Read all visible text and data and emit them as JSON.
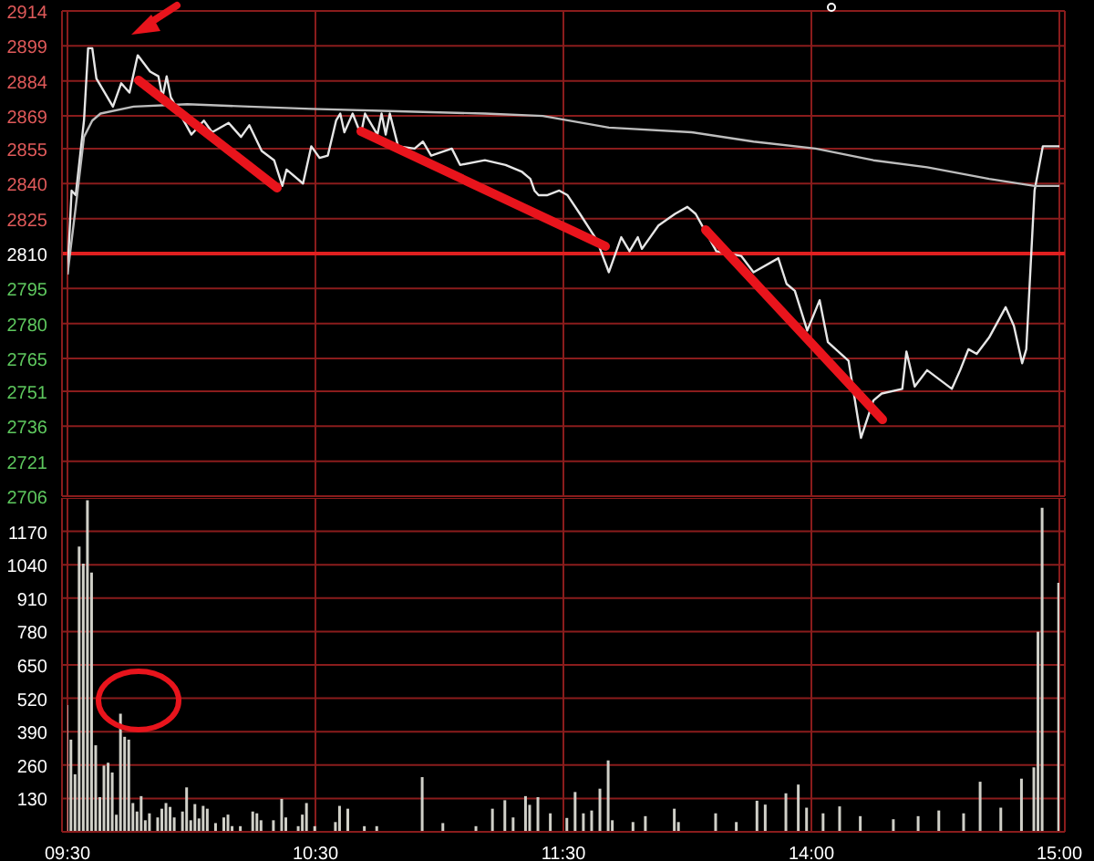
{
  "chart_data": [
    {
      "type": "line",
      "categories": [
        null,
        null,
        null,
        null,
        null,
        null,
        null,
        null,
        null,
        null,
        null,
        null,
        null,
        null,
        null,
        null,
        null,
        null,
        null,
        null,
        null,
        null,
        null,
        null,
        null,
        null,
        null,
        null,
        null,
        null,
        null,
        null,
        null,
        null,
        null,
        null,
        null,
        null,
        null,
        null,
        null,
        null,
        null,
        null,
        null,
        null,
        null,
        null,
        null,
        null,
        null,
        null,
        null,
        null,
        null,
        null,
        null,
        null,
        null,
        null,
        null,
        null,
        null,
        null,
        null,
        null,
        null,
        null,
        null,
        null,
        null,
        null,
        null,
        null,
        null,
        null,
        null,
        null,
        null,
        null,
        null,
        null,
        null,
        null,
        null,
        null,
        null,
        null,
        null,
        null,
        null,
        null,
        null,
        null,
        null,
        null,
        null,
        null,
        null,
        null,
        null,
        null,
        null,
        null,
        null,
        null,
        null,
        null,
        null,
        null,
        null,
        null,
        null,
        null,
        null,
        null,
        null,
        null,
        null,
        null,
        null,
        null,
        null,
        null,
        null,
        null,
        null,
        null,
        null,
        null,
        null,
        null,
        null,
        null,
        null,
        null,
        null,
        null,
        null,
        null,
        null,
        null,
        null,
        null,
        null,
        null,
        null,
        null,
        null,
        null,
        null,
        null,
        null,
        null,
        null,
        null,
        null,
        null,
        null,
        null,
        null,
        null,
        null,
        null,
        null,
        null,
        null,
        null,
        null,
        null,
        null,
        null,
        null,
        null,
        null,
        null,
        null,
        null,
        null,
        null,
        null,
        null,
        null,
        null,
        null,
        null,
        null,
        null,
        null,
        null,
        null,
        null,
        null,
        null,
        null,
        null,
        null,
        null,
        null,
        null,
        null,
        null,
        null,
        null,
        null,
        null,
        null,
        null,
        null,
        null,
        null,
        null,
        null,
        null,
        null,
        null,
        null,
        null,
        null,
        null,
        null,
        null,
        null,
        null,
        null,
        null,
        null,
        null,
        null,
        null,
        null,
        null,
        null,
        null,
        null,
        null,
        null,
        null,
        null,
        null,
        null
      ],
      "ylim": [
        2706,
        2914
      ],
      "yticks": [
        2706,
        2721,
        2736,
        2751,
        2765,
        2780,
        2795,
        2810,
        2825,
        2840,
        2855,
        2869,
        2884,
        2899,
        2914
      ],
      "tick_labels": "y",
      "grid": true,
      "ref_lines": [
        {
          "axis": "y",
          "value": 2810,
          "color": "#e02020"
        }
      ],
      "series": [
        {
          "color": "#e6e6e6",
          "values": [
            2801,
            2837,
            2835,
            null,
            2867,
            2898,
            2898,
            2885,
            null,
            null,
            null,
            2873,
            null,
            2883,
            null,
            2879,
            null,
            2895,
            null,
            null,
            2888,
            null,
            2886,
            2877,
            2886,
            2877,
            null,
            null,
            null,
            null,
            2861,
            null,
            null,
            2867,
            null,
            2862,
            null,
            null,
            null,
            2866,
            null,
            null,
            2860,
            null,
            2865,
            null,
            null,
            2854,
            null,
            null,
            2850,
            null,
            2839,
            2846,
            null,
            null,
            null,
            2840,
            null,
            2856,
            null,
            2851,
            null,
            2852,
            null,
            2867,
            2870,
            2862,
            null,
            2870,
            null,
            2861,
            2870,
            null,
            null,
            2861,
            2870,
            2861,
            2870,
            null,
            2856,
            null,
            null,
            null,
            2855,
            null,
            2858,
            null,
            2852,
            null,
            null,
            null,
            null,
            2855,
            null,
            2848,
            null,
            null,
            null,
            null,
            null,
            2850,
            null,
            null,
            null,
            null,
            2848,
            null,
            null,
            null,
            2845,
            null,
            2842,
            2837,
            2835,
            null,
            2835,
            null,
            null,
            2837,
            null,
            2835,
            null,
            null,
            2827,
            null,
            null,
            null,
            2816,
            null,
            null,
            2802,
            null,
            2812,
            2817,
            null,
            2811,
            null,
            2817,
            2812,
            null,
            null,
            null,
            2822,
            null,
            null,
            null,
            2827,
            null,
            null,
            2830,
            null,
            2827,
            null,
            null,
            null,
            null,
            2811,
            null,
            null,
            null,
            null,
            null,
            2809,
            null,
            null,
            2802,
            null,
            null,
            null,
            null,
            null,
            2808,
            null,
            2797,
            null,
            2794,
            null,
            null,
            2777,
            null,
            null,
            2790,
            null,
            2772,
            null,
            null,
            null,
            null,
            2764,
            null,
            null,
            2731,
            null,
            null,
            2747,
            null,
            2750,
            null,
            null,
            null,
            null,
            2752,
            2768,
            null,
            2753,
            null,
            null,
            2760,
            null,
            null,
            2756,
            null,
            null,
            2752,
            null,
            2760,
            null,
            2769,
            null,
            2767,
            null,
            null,
            2774,
            null,
            null,
            null,
            2787,
            null,
            2779,
            null,
            2763,
            2769,
            null,
            2837,
            null,
            2856,
            null,
            null,
            null,
            2856
          ]
        },
        {
          "color": "#bdbdbd",
          "values": [
            2801,
            null,
            2830,
            null,
            2860,
            null,
            2867,
            null,
            2870,
            null,
            null,
            null,
            null,
            null,
            null,
            null,
            2873,
            null,
            null,
            null,
            null,
            null,
            null,
            null,
            null,
            null,
            null,
            null,
            null,
            2874,
            null,
            null,
            null,
            null,
            null,
            null,
            null,
            null,
            null,
            null,
            null,
            null,
            null,
            null,
            2873,
            null,
            null,
            null,
            null,
            null,
            null,
            null,
            null,
            null,
            null,
            null,
            null,
            null,
            null,
            2872,
            null,
            null,
            null,
            null,
            null,
            null,
            null,
            null,
            null,
            null,
            null,
            null,
            null,
            null,
            null,
            null,
            null,
            null,
            null,
            null,
            2871,
            null,
            null,
            null,
            null,
            null,
            null,
            null,
            null,
            null,
            null,
            null,
            null,
            null,
            null,
            null,
            null,
            null,
            null,
            null,
            null,
            2870,
            null,
            null,
            null,
            null,
            null,
            null,
            null,
            null,
            null,
            null,
            null,
            null,
            null,
            2869,
            null,
            null,
            null,
            null,
            null,
            null,
            null,
            null,
            null,
            null,
            null,
            null,
            null,
            null,
            null,
            2864,
            null,
            null,
            null,
            null,
            null,
            null,
            null,
            null,
            null,
            null,
            null,
            null,
            null,
            null,
            null,
            null,
            null,
            null,
            null,
            2862,
            null,
            null,
            null,
            null,
            null,
            null,
            null,
            null,
            null,
            null,
            null,
            null,
            null,
            null,
            2858,
            null,
            null,
            null,
            null,
            null,
            null,
            null,
            null,
            null,
            null,
            null,
            null,
            null,
            null,
            2855,
            null,
            null,
            null,
            null,
            null,
            null,
            null,
            null,
            null,
            null,
            null,
            null,
            null,
            2850,
            null,
            null,
            null,
            null,
            null,
            null,
            null,
            null,
            null,
            null,
            null,
            null,
            2847,
            null,
            null,
            null,
            null,
            null,
            null,
            null,
            null,
            null,
            null,
            null,
            null,
            null,
            null,
            2842,
            null,
            null,
            null,
            null,
            null,
            null,
            null,
            null,
            null,
            null,
            2839,
            null,
            null,
            null,
            null,
            null,
            2839
          ]
        }
      ]
    },
    {
      "type": "bar",
      "categories": [
        "09:30",
        null,
        null,
        null,
        null,
        null,
        null,
        null,
        null,
        null,
        null,
        null,
        null,
        null,
        null,
        null,
        null,
        null,
        null,
        null,
        null,
        null,
        null,
        null,
        null,
        null,
        null,
        null,
        null,
        null,
        null,
        null,
        null,
        null,
        null,
        null,
        null,
        null,
        null,
        null,
        null,
        null,
        null,
        null,
        null,
        null,
        null,
        null,
        null,
        null,
        null,
        null,
        null,
        null,
        null,
        null,
        null,
        null,
        null,
        null,
        "10:30",
        null,
        null,
        null,
        null,
        null,
        null,
        null,
        null,
        null,
        null,
        null,
        null,
        null,
        null,
        null,
        null,
        null,
        null,
        null,
        null,
        null,
        null,
        null,
        null,
        null,
        null,
        null,
        null,
        null,
        null,
        null,
        null,
        null,
        null,
        null,
        null,
        null,
        null,
        null,
        null,
        null,
        null,
        null,
        null,
        null,
        null,
        null,
        null,
        null,
        null,
        null,
        null,
        null,
        null,
        null,
        null,
        null,
        null,
        null,
        "11:30",
        null,
        null,
        null,
        null,
        null,
        null,
        null,
        null,
        null,
        null,
        null,
        null,
        null,
        null,
        null,
        null,
        null,
        null,
        null,
        null,
        null,
        null,
        null,
        null,
        null,
        null,
        null,
        null,
        null,
        null,
        null,
        null,
        null,
        null,
        null,
        null,
        null,
        null,
        null,
        null,
        null,
        null,
        null,
        null,
        null,
        null,
        null,
        null,
        null,
        null,
        null,
        null,
        null,
        null,
        null,
        null,
        null,
        null,
        null,
        "14:00",
        null,
        null,
        null,
        null,
        null,
        null,
        null,
        null,
        null,
        null,
        null,
        null,
        null,
        null,
        null,
        null,
        null,
        null,
        null,
        null,
        null,
        null,
        null,
        null,
        null,
        null,
        null,
        null,
        null,
        null,
        null,
        null,
        null,
        null,
        null,
        null,
        null,
        null,
        null,
        null,
        null,
        null,
        null,
        null,
        null,
        null,
        null,
        null,
        null,
        null,
        null,
        null,
        null,
        null,
        null,
        null,
        null,
        null,
        null,
        "15:00"
      ],
      "ylim": [
        0,
        1300
      ],
      "yticks": [
        130,
        260,
        390,
        520,
        650,
        780,
        910,
        1040,
        1170
      ],
      "grid": true,
      "series": [
        {
          "color": "#d0d0c8",
          "values": [
            494,
            359,
            224,
            1111,
            1044,
            1291,
            1010,
            337,
            135,
            258,
            269,
            231,
            67,
            460,
            370,
            359,
            112,
            79,
            139,
            45,
            72,
            null,
            56,
            90,
            112,
            97,
            56,
            null,
            79,
            173,
            45,
            108,
            52,
            101,
            90,
            null,
            34,
            null,
            56,
            67,
            22,
            null,
            22,
            null,
            null,
            79,
            72,
            45,
            null,
            null,
            45,
            null,
            128,
            56,
            null,
            null,
            22,
            67,
            112,
            null,
            22,
            null,
            null,
            null,
            null,
            38,
            101,
            null,
            90,
            null,
            null,
            null,
            22,
            null,
            null,
            22,
            null,
            null,
            null,
            null,
            null,
            null,
            null,
            null,
            null,
            null,
            213,
            null,
            null,
            null,
            null,
            34,
            null,
            null,
            null,
            null,
            null,
            null,
            null,
            22,
            null,
            null,
            null,
            90,
            null,
            null,
            123,
            null,
            56,
            null,
            null,
            139,
            105,
            null,
            135,
            null,
            null,
            72,
            null,
            null,
            null,
            54,
            null,
            155,
            null,
            72,
            null,
            83,
            null,
            168,
            null,
            278,
            45,
            null,
            null,
            null,
            null,
            38,
            null,
            null,
            61,
            null,
            null,
            null,
            null,
            null,
            null,
            90,
            38,
            null,
            null,
            null,
            null,
            null,
            null,
            null,
            null,
            72,
            null,
            null,
            null,
            null,
            38,
            null,
            null,
            null,
            null,
            121,
            null,
            106,
            null,
            null,
            null,
            null,
            150,
            null,
            null,
            184,
            null,
            94,
            null,
            null,
            null,
            72,
            null,
            null,
            null,
            99,
            null,
            null,
            null,
            null,
            61,
            null,
            null,
            null,
            null,
            null,
            null,
            null,
            49,
            null,
            null,
            null,
            null,
            null,
            61,
            null,
            null,
            null,
            null,
            83,
            null,
            null,
            null,
            null,
            null,
            72,
            null,
            null,
            null,
            195,
            null,
            null,
            null,
            null,
            94,
            null,
            null,
            null,
            null,
            207,
            null,
            null,
            251,
            779,
            1262,
            null,
            null,
            null,
            970
          ]
        }
      ]
    }
  ]
}
